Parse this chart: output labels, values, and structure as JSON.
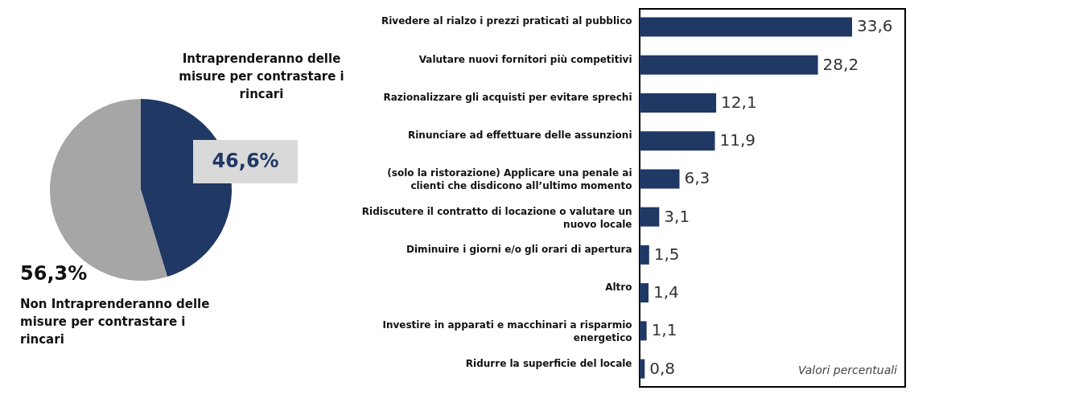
{
  "chart_data": [
    {
      "type": "pie",
      "categories": [
        "Intraprenderanno delle misure per contrastare i rincari",
        "Non Intraprenderanno delle misure per contrastare i rincari"
      ],
      "values": [
        46.6,
        56.3
      ],
      "colors": [
        "#1f3864",
        "#a6a6a6"
      ],
      "value_labels": [
        "46,6%",
        "56,3%"
      ],
      "legend": false
    },
    {
      "type": "bar",
      "orientation": "horizontal",
      "categories": [
        "Rivedere al rialzo i prezzi praticati al pubblico",
        "Valutare nuovi fornitori più competitivi",
        "Razionalizzare gli acquisti per evitare sprechi",
        "Rinunciare ad effettuare delle assunzioni",
        "(solo la ristorazione) Applicare una penale ai clienti che disdicono all’ultimo momento",
        "Ridiscutere il contratto di locazione o valutare un nuovo locale",
        "Diminuire i giorni e/o gli orari di apertura",
        "Altro",
        "Investire in apparati e macchinari a risparmio energetico",
        "Ridurre la superficie del locale"
      ],
      "values": [
        33.6,
        28.2,
        12.1,
        11.9,
        6.3,
        3.1,
        1.5,
        1.4,
        1.1,
        0.8
      ],
      "color": "#1f3864",
      "value_labels": [
        "33,6",
        "28,2",
        "12,1",
        "11,9",
        "6,3",
        "3,1",
        "1,5",
        "1,4",
        "1,1",
        "0,8"
      ],
      "annotations": [
        "Valori percentuali"
      ]
    }
  ]
}
